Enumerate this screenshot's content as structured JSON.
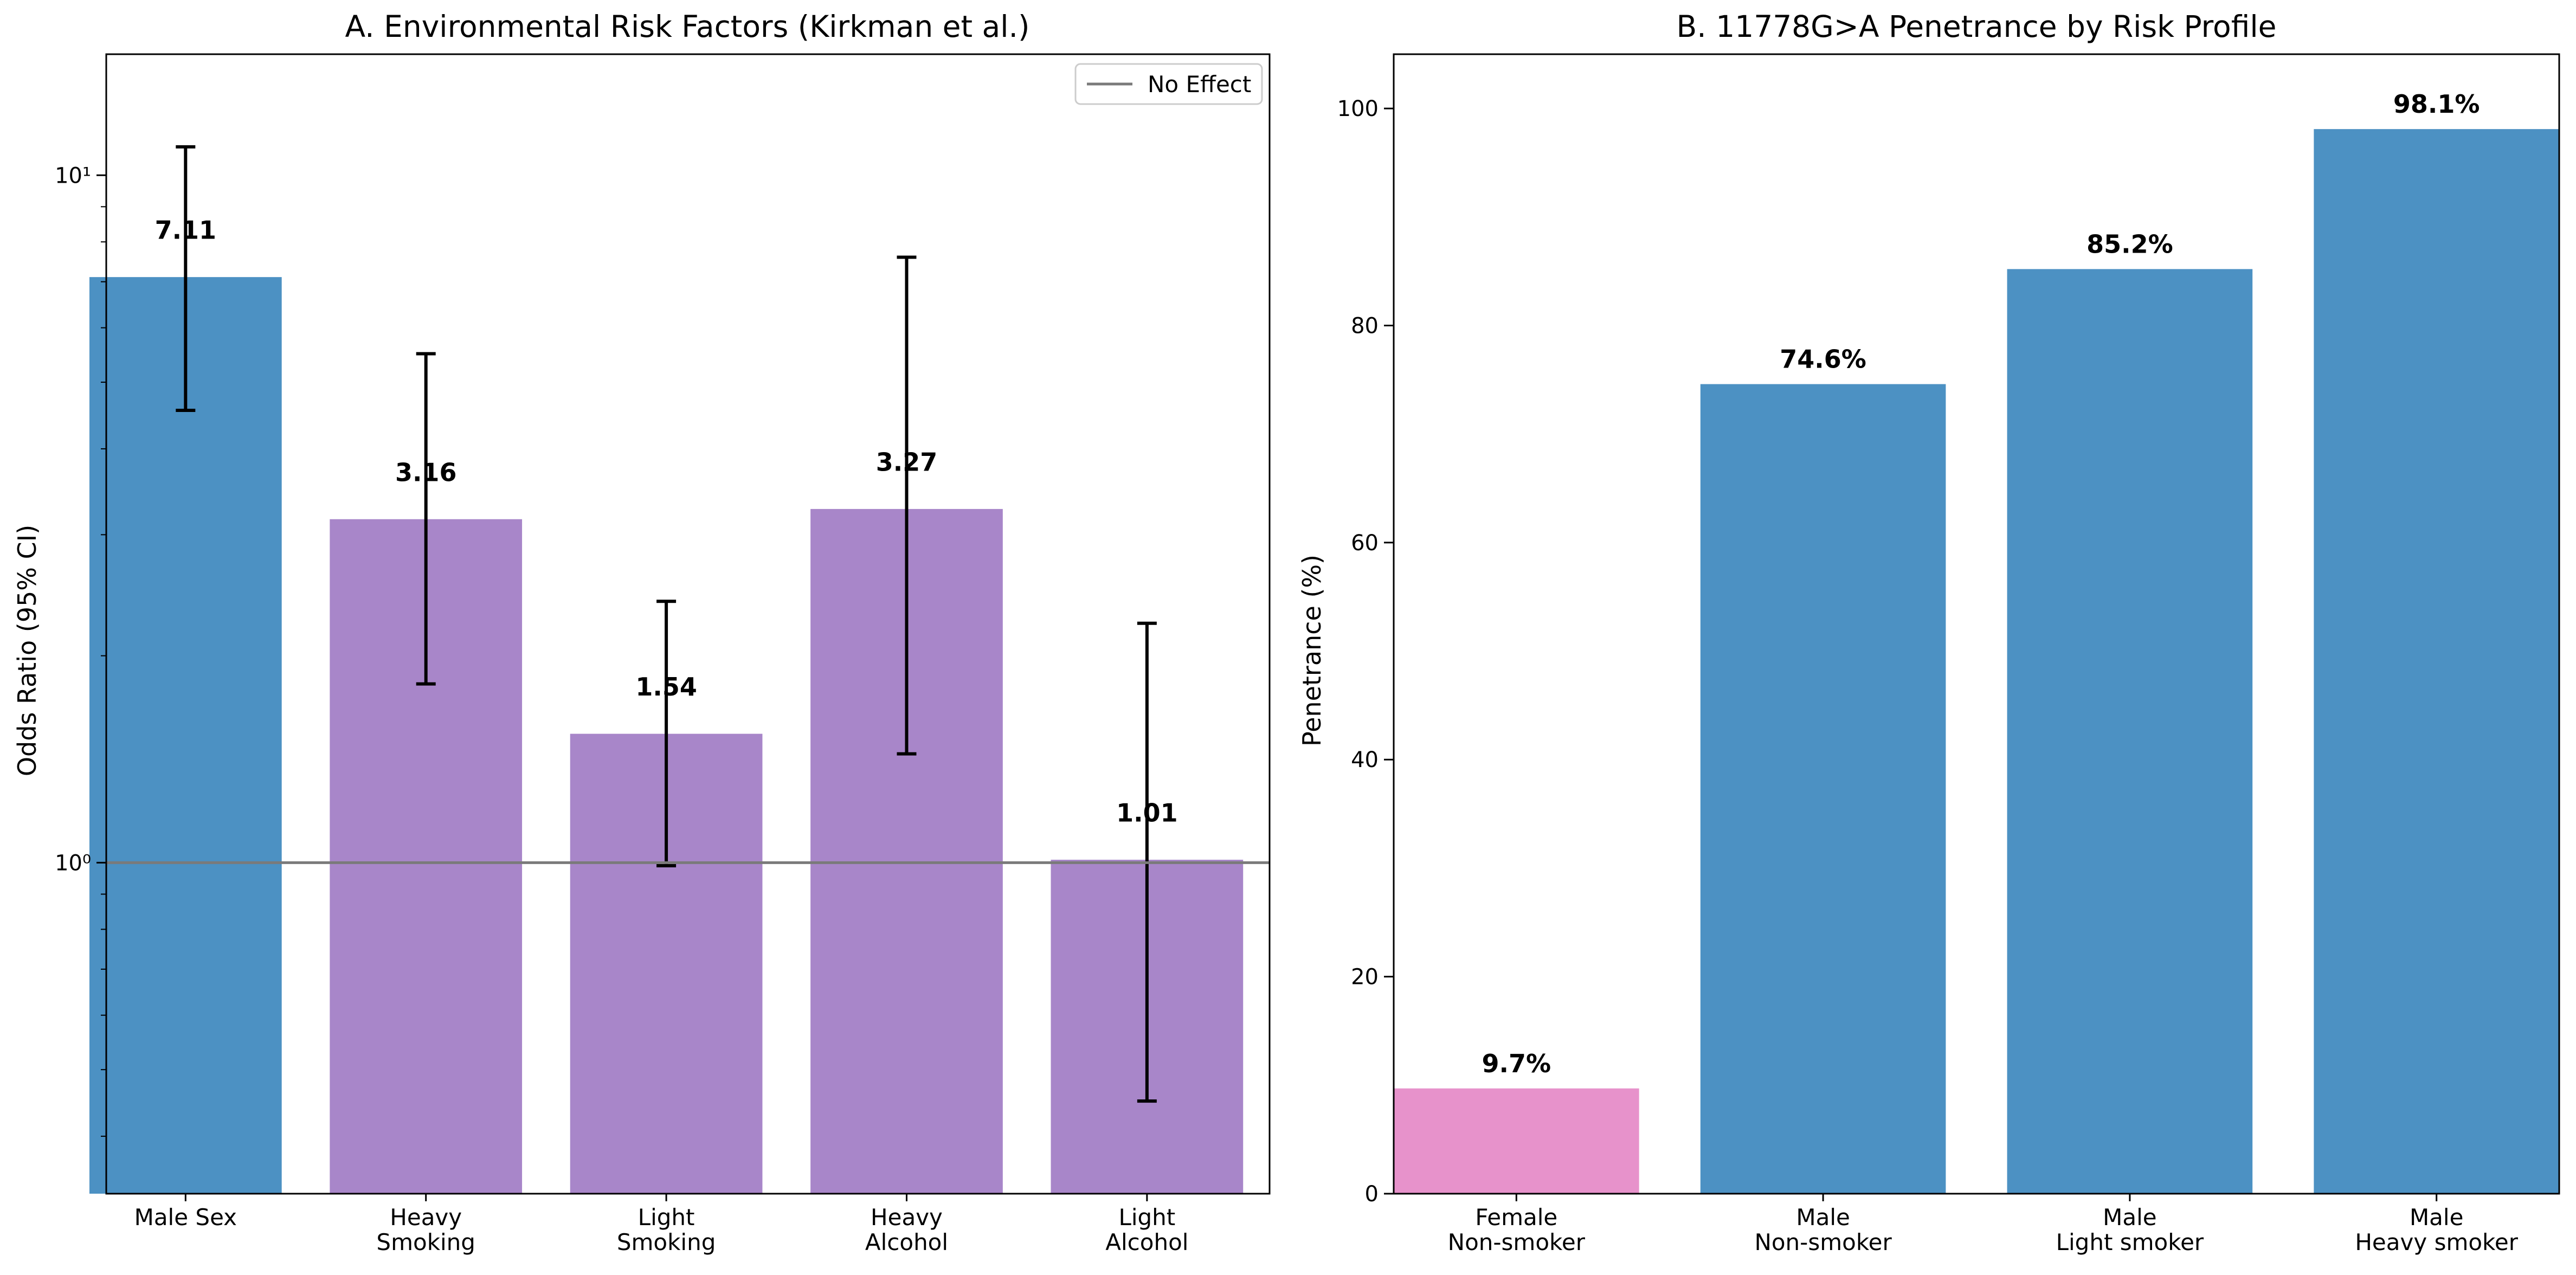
{
  "colors": {
    "male": "#4c91c3",
    "env": "#a886c9",
    "female": "#e792cb",
    "reference_line": "#7a7a7a",
    "error_bar": "#000000"
  },
  "chart_data": [
    {
      "type": "bar",
      "title": "A. Environmental Risk Factors (Kirkman et al.)",
      "xlabel": "",
      "ylabel": "Odds Ratio (95% CI)",
      "yscale": "log",
      "ylim": [
        0.33,
        15
      ],
      "yticks": [
        {
          "value": 1,
          "label": "10⁰"
        },
        {
          "value": 10,
          "label": "10¹"
        }
      ],
      "categories": [
        "Male Sex",
        "Heavy\nSmoking",
        "Light\nSmoking",
        "Heavy\nAlcohol",
        "Light\nAlcohol"
      ],
      "values": [
        7.11,
        3.16,
        1.54,
        3.27,
        1.01
      ],
      "value_labels": [
        "7.11",
        "3.16",
        "1.54",
        "3.27",
        "1.01"
      ],
      "ci_low": [
        4.55,
        1.82,
        0.99,
        1.44,
        0.45
      ],
      "ci_high": [
        11.0,
        5.5,
        2.4,
        7.6,
        2.23
      ],
      "bar_colors": [
        "male",
        "env",
        "env",
        "env",
        "env"
      ],
      "reference_line": {
        "value": 1,
        "label": "No Effect"
      },
      "legend": {
        "position": "top-right",
        "entries": [
          "No Effect"
        ]
      },
      "grid": false
    },
    {
      "type": "bar",
      "title": "B. 11778G>A Penetrance by Risk Profile",
      "xlabel": "",
      "ylabel": "Penetrance (%)",
      "yscale": "linear",
      "ylim": [
        0,
        105
      ],
      "yticks": [
        {
          "value": 0,
          "label": "0"
        },
        {
          "value": 20,
          "label": "20"
        },
        {
          "value": 40,
          "label": "40"
        },
        {
          "value": 60,
          "label": "60"
        },
        {
          "value": 80,
          "label": "80"
        },
        {
          "value": 100,
          "label": "100"
        }
      ],
      "categories": [
        "Female\nNon-smoker",
        "Male\nNon-smoker",
        "Male\nLight smoker",
        "Male\nHeavy smoker"
      ],
      "values": [
        9.7,
        74.6,
        85.2,
        98.1
      ],
      "value_labels": [
        "9.7%",
        "74.6%",
        "85.2%",
        "98.1%"
      ],
      "bar_colors": [
        "female",
        "male",
        "male",
        "male"
      ],
      "grid": false
    }
  ]
}
